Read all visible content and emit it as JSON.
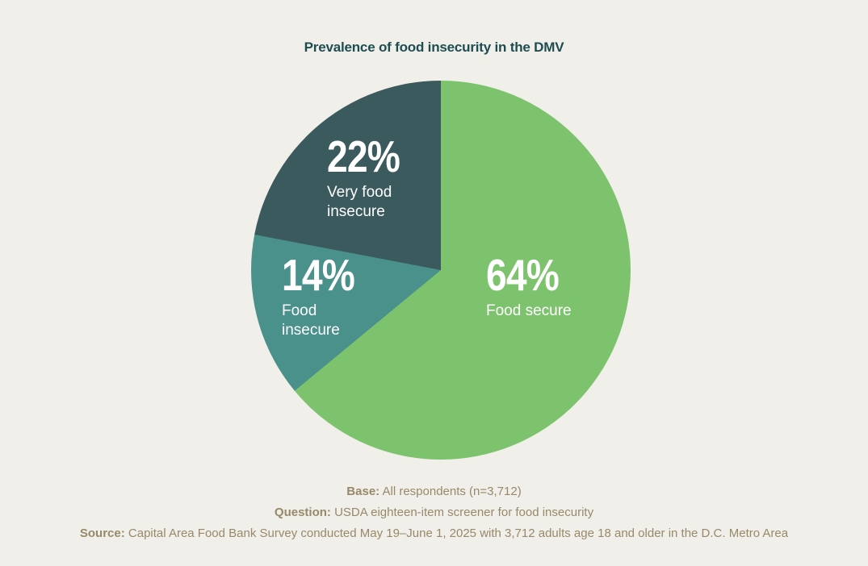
{
  "title": "Prevalence of food insecurity in the DMV",
  "chart_data": {
    "type": "pie",
    "title": "Prevalence of food insecurity in the DMV",
    "slices": [
      {
        "label": "Food secure",
        "value": 64,
        "display": "64%",
        "color": "#7dc36d"
      },
      {
        "label": "Food insecure",
        "value": 14,
        "display": "14%",
        "color": "#4a918c"
      },
      {
        "label": "Very food insecure",
        "value": 22,
        "display": "22%",
        "color": "#3b5a5d"
      }
    ],
    "start_angle_deg": 0,
    "direction": "clockwise",
    "legend": "none",
    "value_suffix": "%",
    "label_position": "inside"
  },
  "labels": {
    "food_secure": {
      "pct": "64%",
      "line1": "Food secure",
      "line2": ""
    },
    "food_insecure": {
      "pct": "14%",
      "line1": "Food",
      "line2": "insecure"
    },
    "very_food_insecure": {
      "pct": "22%",
      "line1": "Very food",
      "line2": "insecure"
    }
  },
  "notes": [
    {
      "label": "Base:",
      "text": " All respondents (n=3,712)"
    },
    {
      "label": "Question:",
      "text": " USDA eighteen-item screener for food insecurity"
    },
    {
      "label": "Source:",
      "text": " Capital Area Food Bank Survey conducted May 19–June 1, 2025 with 3,712 adults age 18 and older in the D.C. Metro Area"
    }
  ],
  "colors": {
    "background": "#f1efe9",
    "title_text": "#1d4d52",
    "note_text": "#97896a",
    "slice_label_text": "#ffffff"
  }
}
